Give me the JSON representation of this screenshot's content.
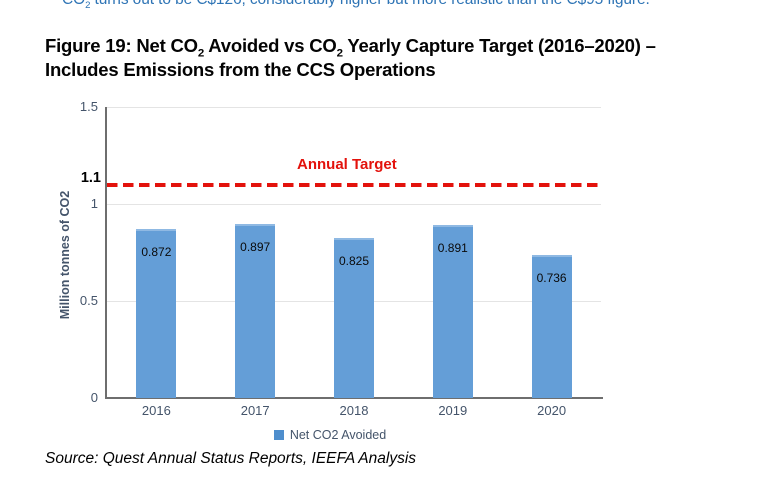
{
  "page": {
    "top_cutoff_text": {
      "pre": "CO",
      "sub": "2",
      "rest": " turns out to be C$126, considerably higher but more realistic than the C$95 figure."
    },
    "figure_title": {
      "t1": "Figure 19: Net CO",
      "s1": "2",
      "t2": " Avoided vs CO",
      "s2": "2",
      "t3": " Yearly Capture Target (2016–2020) –",
      "t4": "Includes Emissions from the CCS Operations"
    },
    "source_note": "Source: Quest Annual Status Reports, IEEFA Analysis"
  },
  "chart_data": {
    "type": "bar",
    "title": "Net CO2 Avoided vs CO2 Yearly Capture Target (2016–2020)",
    "categories": [
      "2016",
      "2017",
      "2018",
      "2019",
      "2020"
    ],
    "series": [
      {
        "name": "Net CO2 Avoided",
        "values": [
          0.872,
          0.897,
          0.825,
          0.891,
          0.736
        ],
        "labels": [
          "0.872",
          "0.897",
          "0.825",
          "0.891",
          "0.736"
        ]
      }
    ],
    "xlabel": "",
    "ylabel": "Million tonnes of CO2",
    "ylim": [
      0,
      1.5
    ],
    "yticks": [
      {
        "label": "0",
        "value": 0
      },
      {
        "label": "0.5",
        "value": 0.5
      },
      {
        "label": "1",
        "value": 1
      },
      {
        "label": "1.5",
        "value": 1.5
      }
    ],
    "target_line": {
      "value": 1.1,
      "tick_label": "1.1",
      "label": "Annual Target"
    },
    "grid": true,
    "legend_position": "bottom",
    "colors": {
      "bar": "#649ed7",
      "bar_top": "#8fb9e3",
      "legend": "#4e8ecd",
      "target": "#e3120c",
      "axis_text": "#44546a",
      "grid": "#e4e4e4",
      "axis_line": "#6e6e6e"
    }
  }
}
